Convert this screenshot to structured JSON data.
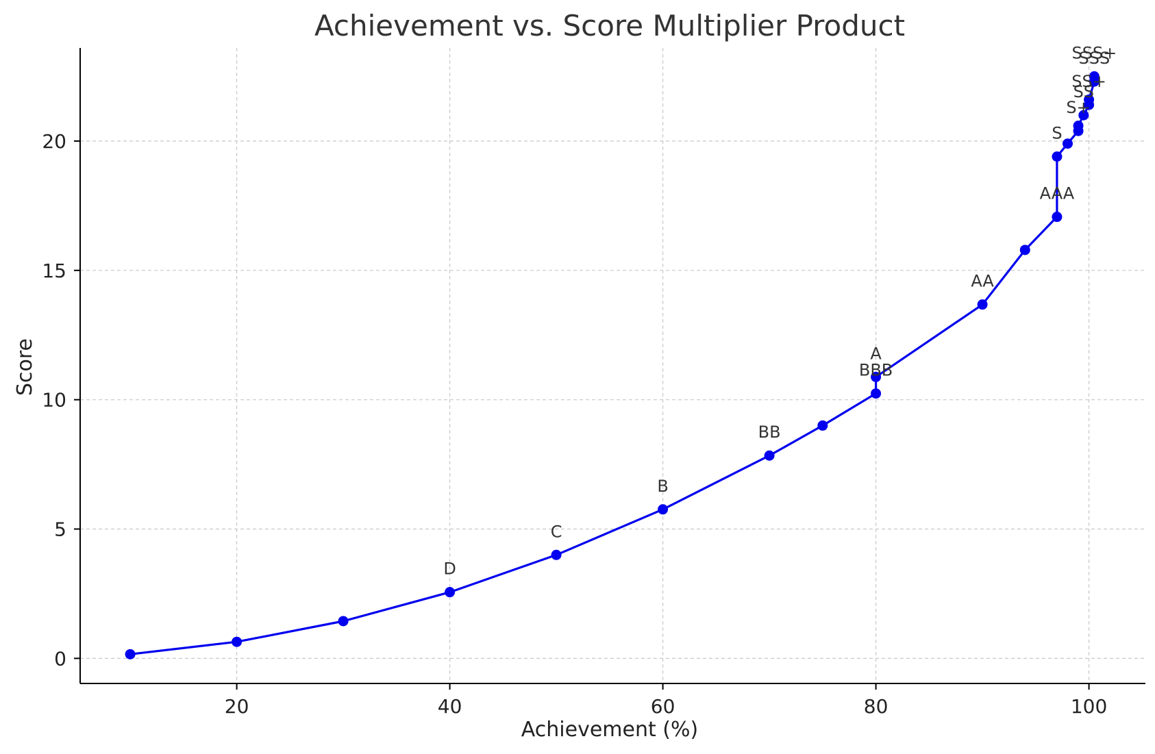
{
  "chart_data": {
    "type": "line",
    "title": "Achievement vs. Score Multiplier Product",
    "xlabel": "Achievement (%)",
    "ylabel": "Score",
    "xlim": [
      5.3,
      105.3
    ],
    "ylim": [
      -0.97,
      23.6
    ],
    "xticks": [
      20,
      40,
      60,
      80,
      100
    ],
    "yticks": [
      0,
      5,
      10,
      15,
      20
    ],
    "grid": true,
    "color": "#0000ee",
    "points": [
      {
        "x": 10,
        "y": 0.16,
        "label": ""
      },
      {
        "x": 20,
        "y": 0.64,
        "label": ""
      },
      {
        "x": 30,
        "y": 1.44,
        "label": ""
      },
      {
        "x": 40,
        "y": 2.56,
        "label": "D"
      },
      {
        "x": 50,
        "y": 4.0,
        "label": "C"
      },
      {
        "x": 60,
        "y": 5.76,
        "label": "B"
      },
      {
        "x": 70,
        "y": 7.84,
        "label": "BB"
      },
      {
        "x": 75,
        "y": 9.0,
        "label": ""
      },
      {
        "x": 80,
        "y": 10.24,
        "label": "BBB"
      },
      {
        "x": 80,
        "y": 10.88,
        "label": "A"
      },
      {
        "x": 90,
        "y": 13.68,
        "label": "AA"
      },
      {
        "x": 94,
        "y": 15.79,
        "label": ""
      },
      {
        "x": 97,
        "y": 17.07,
        "label": "AAA"
      },
      {
        "x": 97,
        "y": 19.4,
        "label": "S"
      },
      {
        "x": 98,
        "y": 19.9,
        "label": ""
      },
      {
        "x": 99,
        "y": 20.39,
        "label": "S+"
      },
      {
        "x": 99,
        "y": 20.59,
        "label": ""
      },
      {
        "x": 99.5,
        "y": 21.0,
        "label": "SS"
      },
      {
        "x": 100,
        "y": 21.4,
        "label": "SS+"
      },
      {
        "x": 100,
        "y": 21.6,
        "label": ""
      },
      {
        "x": 100.5,
        "y": 22.3,
        "label": "SSS"
      },
      {
        "x": 100.5,
        "y": 22.5,
        "label": "SSS+"
      }
    ]
  }
}
